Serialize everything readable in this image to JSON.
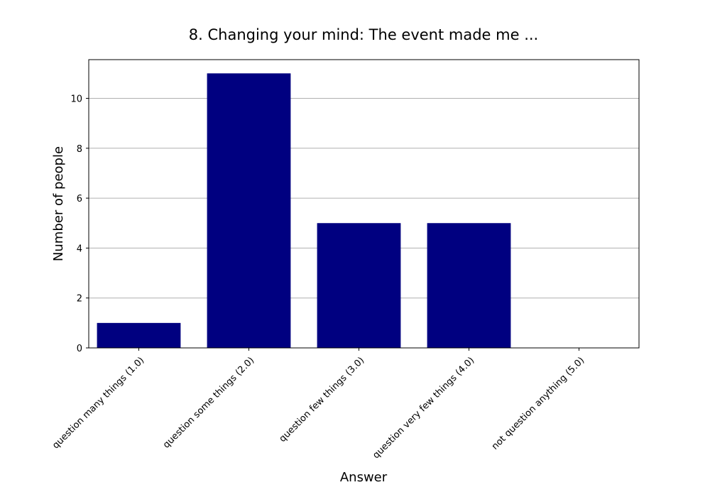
{
  "chart_data": {
    "type": "bar",
    "title": "8. Changing your mind: The event made me ...",
    "x_label": "Answer",
    "y_label": "Number of people",
    "categories": [
      "question many things (1.0)",
      "question some things (2.0)",
      "question few things (3.0)",
      "question very few things (4.0)",
      "not question anything (5.0)"
    ],
    "values": [
      1,
      11,
      5,
      5,
      0
    ],
    "color": "#000080",
    "ylim": [
      0,
      11.55
    ],
    "yticks": [
      0,
      2,
      4,
      6,
      8,
      10
    ],
    "grid": true
  }
}
